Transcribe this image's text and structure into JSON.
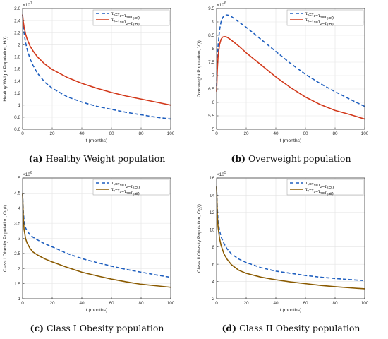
{
  "figure": {
    "captions": [
      {
        "tag": "(a)",
        "text": "Healthy Weight population"
      },
      {
        "tag": "(b)",
        "text": "Overweight population"
      },
      {
        "tag": "(c)",
        "text": "Class I Obesity population"
      },
      {
        "tag": "(d)",
        "text": "Class II Obesity population"
      }
    ]
  },
  "chart_data": [
    {
      "type": "line",
      "title": "",
      "xlabel": "t (months)",
      "ylabel": "Healthy Weight Population, H(t)",
      "exponent_label": "×10^7",
      "xlim": [
        0,
        100
      ],
      "ylim": [
        0.6,
        2.6
      ],
      "xticks": [
        0,
        20,
        40,
        60,
        80,
        100
      ],
      "yticks": [
        0.6,
        0.8,
        1,
        1.2,
        1.4,
        1.6,
        1.8,
        2,
        2.2,
        2.4,
        2.6
      ],
      "ytick_labels": [
        "0.6",
        "0.8",
        "1",
        "1.2",
        "1.4",
        "1.6",
        "1.8",
        "2",
        "2.2",
        "2.4",
        "2.6"
      ],
      "grid": true,
      "legend_position": "top-right",
      "series": [
        {
          "name": "τv=τ1=τ2=τ3=0",
          "color": "#1f5fbf",
          "style": "dashed",
          "x": [
            0,
            0.5,
            1,
            2,
            3,
            5,
            7,
            10,
            15,
            20,
            30,
            40,
            50,
            60,
            70,
            80,
            90,
            100
          ],
          "y": [
            2.5,
            2.32,
            2.2,
            2.04,
            1.93,
            1.77,
            1.66,
            1.53,
            1.38,
            1.28,
            1.14,
            1.05,
            0.98,
            0.93,
            0.88,
            0.84,
            0.8,
            0.77
          ]
        },
        {
          "name": "τv=τ1=τ2=τ3≠0",
          "color": "#d2381a",
          "style": "solid",
          "x": [
            0,
            0.5,
            1,
            2,
            3,
            5,
            7,
            10,
            15,
            20,
            30,
            40,
            50,
            60,
            70,
            80,
            90,
            100
          ],
          "y": [
            2.5,
            2.38,
            2.3,
            2.18,
            2.1,
            1.98,
            1.9,
            1.8,
            1.68,
            1.59,
            1.46,
            1.36,
            1.28,
            1.21,
            1.15,
            1.1,
            1.05,
            1.0
          ]
        }
      ]
    },
    {
      "type": "line",
      "title": "",
      "xlabel": "t (months)",
      "ylabel": "Overweight Population, V(t)",
      "exponent_label": "×10^6",
      "xlim": [
        0,
        100
      ],
      "ylim": [
        5,
        9.5
      ],
      "xticks": [
        0,
        20,
        40,
        60,
        80,
        100
      ],
      "yticks": [
        5,
        5.5,
        6,
        6.5,
        7,
        7.5,
        8,
        8.5,
        9,
        9.5
      ],
      "ytick_labels": [
        "5",
        "5.5",
        "6",
        "6.5",
        "7",
        "7.5",
        "8",
        "8.5",
        "9",
        "9.5"
      ],
      "grid": true,
      "legend_position": "top-right",
      "series": [
        {
          "name": "τv=τ1=τ2=τ3=0",
          "color": "#1f5fbf",
          "style": "dashed",
          "x": [
            0,
            0.5,
            1,
            2,
            3,
            4,
            5,
            6,
            7,
            8,
            10,
            12,
            15,
            20,
            30,
            40,
            50,
            60,
            70,
            80,
            90,
            100
          ],
          "y": [
            6.6,
            7.6,
            8.1,
            8.7,
            9.0,
            9.15,
            9.23,
            9.26,
            9.26,
            9.25,
            9.2,
            9.12,
            9.0,
            8.8,
            8.35,
            7.9,
            7.45,
            7.05,
            6.7,
            6.4,
            6.12,
            5.85
          ]
        },
        {
          "name": "τv=τ1=τ2=τ3≠0",
          "color": "#d2381a",
          "style": "solid",
          "x": [
            0,
            0.5,
            1,
            2,
            3,
            4,
            5,
            6,
            7,
            8,
            10,
            12,
            15,
            20,
            30,
            40,
            50,
            60,
            70,
            80,
            90,
            100
          ],
          "y": [
            6.4,
            7.2,
            7.7,
            8.15,
            8.35,
            8.43,
            8.45,
            8.45,
            8.43,
            8.4,
            8.32,
            8.23,
            8.1,
            7.85,
            7.4,
            6.95,
            6.55,
            6.2,
            5.92,
            5.7,
            5.55,
            5.38
          ]
        }
      ]
    },
    {
      "type": "line",
      "title": "",
      "xlabel": "t (months)",
      "ylabel": "Class I Obesity Population, O1(t)",
      "exponent_label": "×10^6",
      "xlim": [
        0,
        100
      ],
      "ylim": [
        1,
        5
      ],
      "xticks": [
        0,
        20,
        40,
        60,
        80,
        100
      ],
      "yticks": [
        1,
        1.5,
        2,
        2.5,
        3,
        3.5,
        4,
        4.5,
        5
      ],
      "ytick_labels": [
        "1",
        "1.5",
        "2",
        "2.5",
        "3",
        "3.5",
        "4",
        "4.5",
        "5"
      ],
      "grid": true,
      "legend_position": "top-right",
      "series": [
        {
          "name": "τv=τ1=τ2=τ3=0",
          "color": "#1f5fbf",
          "style": "dashed",
          "x": [
            0,
            0.5,
            1,
            2,
            3,
            5,
            7,
            10,
            15,
            20,
            30,
            40,
            50,
            60,
            70,
            80,
            90,
            100
          ],
          "y": [
            4.5,
            3.9,
            3.6,
            3.35,
            3.25,
            3.12,
            3.04,
            2.95,
            2.82,
            2.72,
            2.5,
            2.33,
            2.2,
            2.08,
            1.97,
            1.88,
            1.79,
            1.71
          ]
        },
        {
          "name": "τv=τ1=τ2=τ3≠0",
          "color": "#8a5a00",
          "style": "solid",
          "x": [
            0,
            0.5,
            1,
            2,
            3,
            5,
            7,
            10,
            15,
            20,
            30,
            40,
            50,
            60,
            70,
            80,
            90,
            100
          ],
          "y": [
            4.5,
            3.7,
            3.3,
            3.0,
            2.85,
            2.67,
            2.55,
            2.45,
            2.32,
            2.22,
            2.04,
            1.88,
            1.76,
            1.65,
            1.56,
            1.48,
            1.43,
            1.38
          ]
        }
      ]
    },
    {
      "type": "line",
      "title": "",
      "xlabel": "t (months)",
      "ylabel": "Class II Obesity Population, O2(t)",
      "exponent_label": "×10^5",
      "xlim": [
        0,
        100
      ],
      "ylim": [
        2,
        16
      ],
      "xticks": [
        0,
        20,
        40,
        60,
        80,
        100
      ],
      "yticks": [
        2,
        4,
        6,
        8,
        10,
        12,
        14,
        16
      ],
      "ytick_labels": [
        "2",
        "4",
        "6",
        "8",
        "10",
        "12",
        "14",
        "16"
      ],
      "grid": true,
      "legend_position": "top-right",
      "series": [
        {
          "name": "τv=τ1=τ2=τ3=0",
          "color": "#1f5fbf",
          "style": "dashed",
          "x": [
            0,
            0.5,
            1,
            2,
            3,
            5,
            7,
            10,
            15,
            20,
            30,
            40,
            50,
            60,
            70,
            80,
            90,
            100
          ],
          "y": [
            15,
            12.5,
            11.0,
            9.9,
            9.2,
            8.4,
            7.8,
            7.2,
            6.6,
            6.2,
            5.6,
            5.2,
            4.95,
            4.7,
            4.5,
            4.35,
            4.22,
            4.1
          ]
        },
        {
          "name": "τv=τ1=τ2=τ3≠0",
          "color": "#8a5a00",
          "style": "solid",
          "x": [
            0,
            0.5,
            1,
            2,
            3,
            5,
            7,
            10,
            15,
            20,
            30,
            40,
            50,
            60,
            70,
            80,
            90,
            100
          ],
          "y": [
            15,
            11.8,
            10.3,
            9.0,
            8.2,
            7.2,
            6.6,
            5.95,
            5.3,
            4.95,
            4.5,
            4.2,
            3.95,
            3.75,
            3.55,
            3.4,
            3.27,
            3.15
          ]
        }
      ]
    }
  ]
}
